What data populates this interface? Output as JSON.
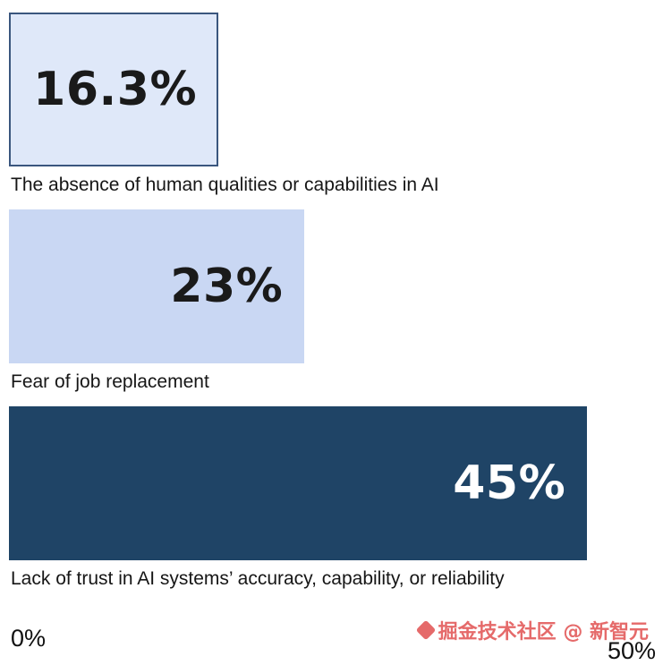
{
  "chart_data": {
    "type": "bar",
    "orientation": "horizontal",
    "title": "",
    "categories": [
      "The absence of human qualities or capabilities in AI",
      "Fear of job replacement",
      "Lack of trust in AI systems’ accuracy, capability, or reliability"
    ],
    "values": [
      16.3,
      23,
      45
    ],
    "value_labels": [
      "16.3%",
      "23%",
      "45%"
    ],
    "xlabel": "",
    "ylabel": "",
    "xlim": [
      0,
      50
    ],
    "x_tick_labels": [
      "0%",
      "50%"
    ],
    "grid": "off",
    "legend": "none",
    "bar_colors": [
      "#dfe8f9",
      "#c9d7f3",
      "#1f4466"
    ],
    "bar_border_colors": [
      "#3a567e",
      "transparent",
      "transparent"
    ],
    "value_text_colors": [
      "#1a1a1a",
      "#1a1a1a",
      "#ffffff"
    ]
  },
  "axis": {
    "left_tick": "0%",
    "right_tick": "50%"
  },
  "watermark": {
    "text": "掘金技术社区 @ 新智元",
    "color": "#e56a6a"
  }
}
